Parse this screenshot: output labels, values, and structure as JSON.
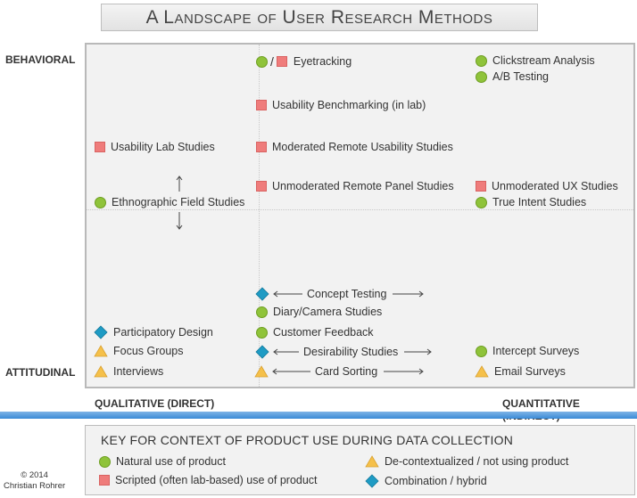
{
  "title": "A Landscape of User Research Methods",
  "axes": {
    "top_left": "BEHAVIORAL",
    "bottom_left": "ATTITUDINAL",
    "x_left": "QUALITATIVE (DIRECT)",
    "x_right": "QUANTITATIVE (INDIRECT)"
  },
  "methods": {
    "eyetracking": "Eyetracking",
    "clickstream": "Clickstream Analysis",
    "ab_testing": "A/B Testing",
    "usability_benchmarking": "Usability Benchmarking (in lab)",
    "usability_lab": "Usability Lab Studies",
    "moderated_remote": "Moderated Remote Usability Studies",
    "unmoderated_panel": "Unmoderated Remote Panel Studies",
    "unmoderated_ux": "Unmoderated UX Studies",
    "ethnographic": "Ethnographic Field Studies",
    "true_intent": "True Intent Studies",
    "concept_testing": "Concept Testing",
    "diary_camera": "Diary/Camera Studies",
    "participatory": "Participatory Design",
    "customer_feedback": "Customer Feedback",
    "focus_groups": "Focus Groups",
    "desirability": "Desirability Studies",
    "intercept": "Intercept Surveys",
    "interviews": "Interviews",
    "card_sorting": "Card Sorting",
    "email_surveys": "Email Surveys"
  },
  "key": {
    "title": "KEY FOR CONTEXT OF PRODUCT USE DURING DATA COLLECTION",
    "natural": "Natural use of product",
    "scripted": "Scripted (often lab-based) use of product",
    "decontextualized": "De-contextualized / not using product",
    "combination": "Combination / hybrid"
  },
  "copyright": {
    "line1": "© 2014",
    "line2": "Christian Rohrer"
  },
  "colors": {
    "natural": "#8fc33a",
    "scripted": "#ef7c7b",
    "decontextualized": "#f5c04a",
    "combination": "#1e9bc4",
    "accent_bar": "#3a8ad6"
  }
}
